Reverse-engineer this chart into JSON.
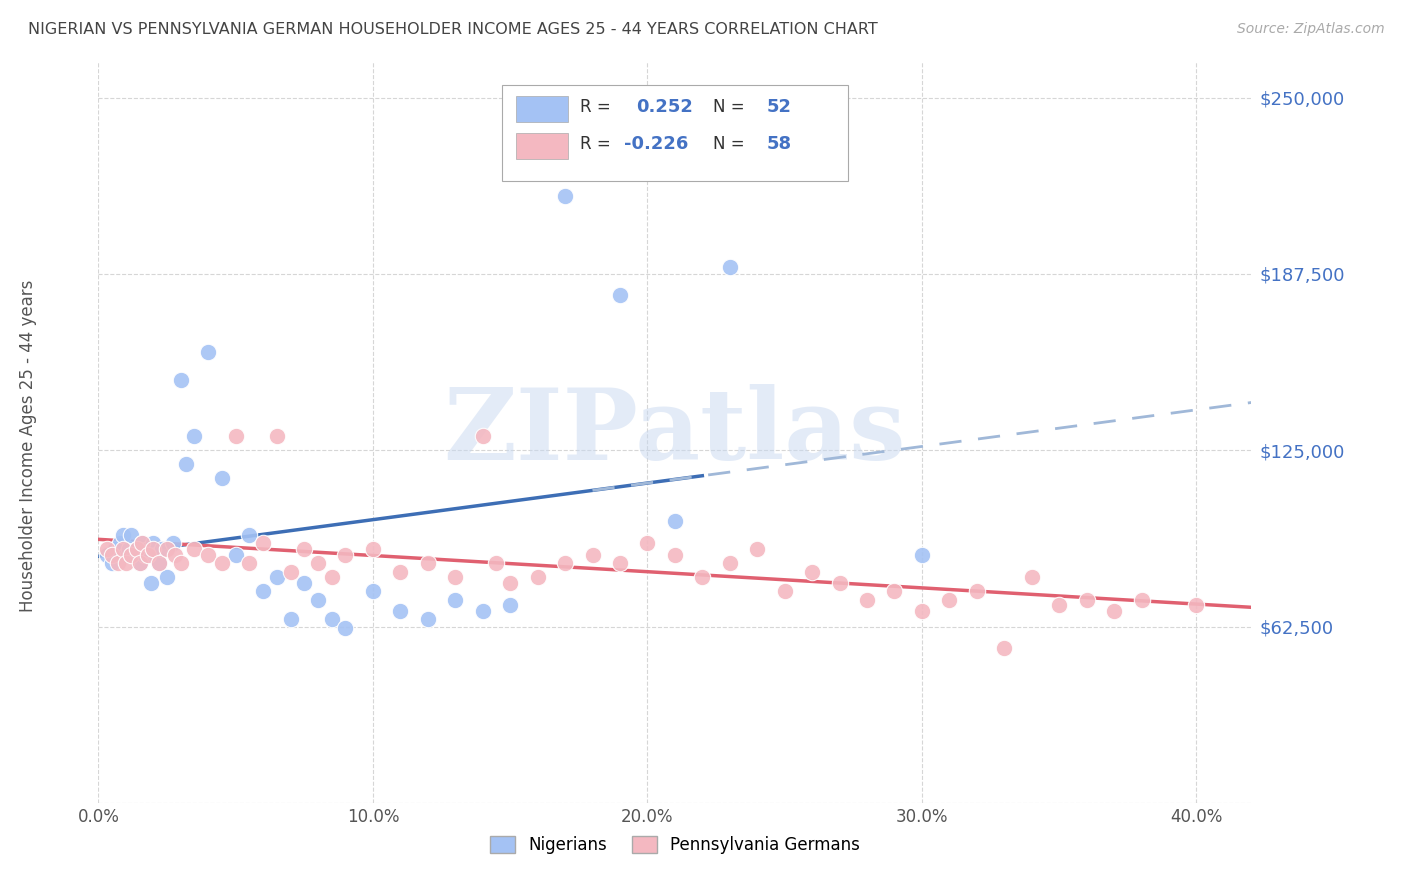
{
  "title": "NIGERIAN VS PENNSYLVANIA GERMAN HOUSEHOLDER INCOME AGES 25 - 44 YEARS CORRELATION CHART",
  "source": "Source: ZipAtlas.com",
  "ylabel": "Householder Income Ages 25 - 44 years",
  "xlabel_ticks": [
    "0.0%",
    "10.0%",
    "20.0%",
    "30.0%",
    "40.0%"
  ],
  "xlabel_tick_vals": [
    0.0,
    10.0,
    20.0,
    30.0,
    40.0
  ],
  "ylim": [
    0,
    262500
  ],
  "xlim": [
    0,
    42
  ],
  "ytick_vals": [
    0,
    62500,
    125000,
    187500,
    250000
  ],
  "ytick_labels": [
    "",
    "$62,500",
    "$125,000",
    "$187,500",
    "$250,000"
  ],
  "nigerian_color": "#a4c2f4",
  "pg_color": "#f4b8c1",
  "trend_nigerian_solid_color": "#3d6eb5",
  "trend_nigerian_dash_color": "#a0b8d8",
  "trend_pg_color": "#e06070",
  "background_color": "#ffffff",
  "grid_color": "#cccccc",
  "watermark_text": "ZIPatlas",
  "watermark_color": "#c8d8f0",
  "title_color": "#444444",
  "axis_label_color": "#555555",
  "ytick_label_color": "#4472c4",
  "r_text_color": "#4472c4",
  "label_text_color": "#333333",
  "nigerian_x": [
    0.3,
    0.5,
    0.6,
    0.8,
    0.9,
    1.0,
    1.1,
    1.2,
    1.3,
    1.4,
    1.5,
    1.6,
    1.7,
    1.8,
    1.9,
    2.0,
    2.1,
    2.2,
    2.3,
    2.5,
    2.7,
    3.0,
    3.2,
    3.5,
    4.0,
    4.5,
    5.0,
    5.5,
    6.0,
    6.5,
    7.0,
    7.5,
    8.0,
    8.5,
    9.0,
    10.0,
    11.0,
    12.0,
    13.0,
    14.0,
    15.0,
    17.0,
    19.0,
    21.0,
    23.0,
    30.0
  ],
  "nigerian_y": [
    88000,
    85000,
    90000,
    92000,
    95000,
    88000,
    90000,
    95000,
    88000,
    90000,
    85000,
    92000,
    88000,
    90000,
    78000,
    92000,
    88000,
    85000,
    90000,
    80000,
    92000,
    150000,
    120000,
    130000,
    160000,
    115000,
    88000,
    95000,
    75000,
    80000,
    65000,
    78000,
    72000,
    65000,
    62000,
    75000,
    68000,
    65000,
    72000,
    68000,
    70000,
    215000,
    180000,
    100000,
    190000,
    88000
  ],
  "pg_x": [
    0.3,
    0.5,
    0.7,
    0.9,
    1.0,
    1.2,
    1.4,
    1.5,
    1.6,
    1.8,
    2.0,
    2.2,
    2.5,
    2.8,
    3.0,
    3.5,
    4.0,
    4.5,
    5.0,
    5.5,
    6.0,
    6.5,
    7.0,
    7.5,
    8.0,
    8.5,
    9.0,
    10.0,
    11.0,
    12.0,
    13.0,
    14.0,
    14.5,
    15.0,
    16.0,
    17.0,
    18.0,
    19.0,
    20.0,
    21.0,
    22.0,
    23.0,
    24.0,
    25.0,
    26.0,
    27.0,
    28.0,
    29.0,
    30.0,
    31.0,
    32.0,
    33.0,
    34.0,
    35.0,
    36.0,
    37.0,
    38.0,
    40.0
  ],
  "pg_y": [
    90000,
    88000,
    85000,
    90000,
    85000,
    88000,
    90000,
    85000,
    92000,
    88000,
    90000,
    85000,
    90000,
    88000,
    85000,
    90000,
    88000,
    85000,
    130000,
    85000,
    92000,
    130000,
    82000,
    90000,
    85000,
    80000,
    88000,
    90000,
    82000,
    85000,
    80000,
    130000,
    85000,
    78000,
    80000,
    85000,
    88000,
    85000,
    92000,
    88000,
    80000,
    85000,
    90000,
    75000,
    82000,
    78000,
    72000,
    75000,
    68000,
    72000,
    75000,
    55000,
    80000,
    70000,
    72000,
    68000,
    72000,
    70000
  ]
}
